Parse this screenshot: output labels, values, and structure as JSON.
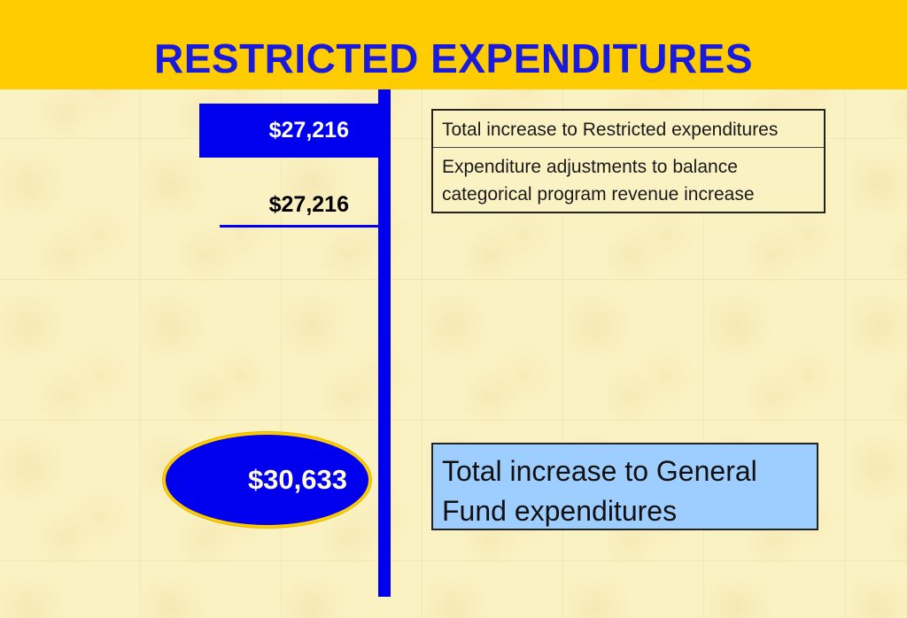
{
  "title": "RESTRICTED EXPENDITURES",
  "amounts": {
    "restricted_total": "$27,216",
    "adjustment": "$27,216",
    "general_fund_total": "$30,633"
  },
  "descriptions": [
    "Total increase to Restricted expenditures",
    "Expenditure adjustments to balance categorical program revenue increase"
  ],
  "general_fund_label": "Total increase to General Fund expenditures",
  "colors": {
    "header": "#ffcc00",
    "title": "#1a1adc",
    "accent_blue": "#0000ee",
    "total_box": "#9ecdff",
    "background": "#fbf2c4"
  }
}
